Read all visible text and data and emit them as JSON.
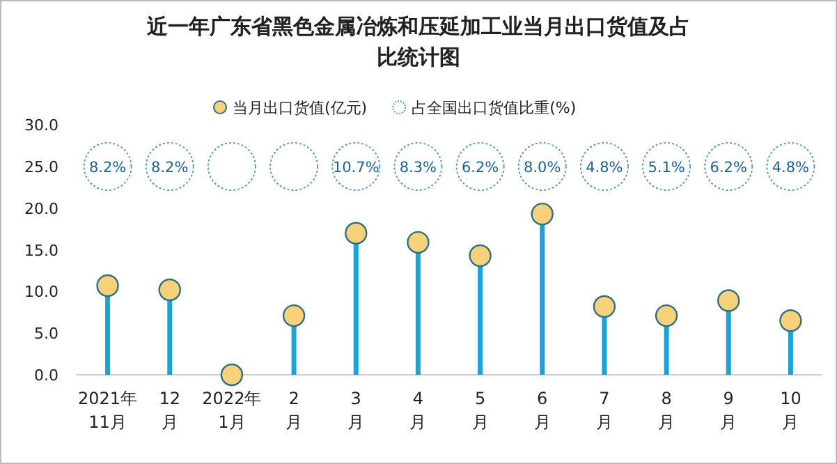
{
  "chart_data": {
    "type": "lollipop",
    "title": "近一年广东省黑色金属冶炼和压延加工业当月出口货值及占比统计图",
    "categories": [
      "2021年11月",
      "12月",
      "2022年1月",
      "2月",
      "3月",
      "4月",
      "5月",
      "6月",
      "7月",
      "8月",
      "9月",
      "10月"
    ],
    "series": [
      {
        "name": "当月出口货值(亿元)",
        "color": "#f7d27a",
        "values": [
          10.7,
          10.2,
          0,
          7.1,
          17.0,
          15.9,
          14.3,
          19.3,
          8.2,
          7.1,
          8.9,
          6.5
        ]
      }
    ],
    "annotations": [
      "占全国出口货值比重(%)",
      {
        "text": "8.2%",
        "x": "2021年11月"
      },
      {
        "text": "8.2%",
        "x": "12月"
      },
      {
        "text": "10.7%",
        "x": "3月"
      },
      {
        "text": "8.3%",
        "x": "4月"
      },
      {
        "text": "6.2%",
        "x": "5月"
      },
      {
        "text": "8.0%",
        "x": "6月"
      },
      {
        "text": "4.8%",
        "x": "7月"
      },
      {
        "text": "5.1%",
        "x": "8月"
      },
      {
        "text": "6.2%",
        "x": "9月"
      },
      {
        "text": "4.8%",
        "x": "10月"
      }
    ],
    "ylim": [
      0,
      30
    ],
    "yticks": [
      {
        "value": 0,
        "label": "0.0"
      },
      {
        "value": 5,
        "label": "5.0"
      },
      {
        "value": 10,
        "label": "10.0"
      },
      {
        "value": 15,
        "label": "15.0"
      },
      {
        "value": 20,
        "label": "20.0"
      },
      {
        "value": 25,
        "label": "25.0"
      },
      {
        "value": 30,
        "label": "30.0"
      }
    ],
    "legend": "top",
    "marker": "circle"
  }
}
